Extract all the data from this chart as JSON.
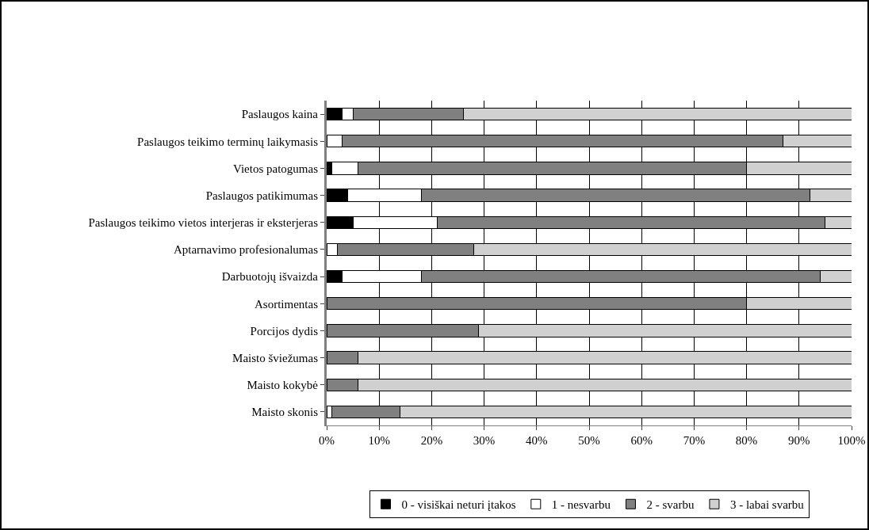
{
  "chart_data": {
    "type": "bar",
    "orientation": "horizontal",
    "stacked": true,
    "grid": "x",
    "legend": "bottom",
    "categories": [
      "Paslaugos kaina",
      "Paslaugos teikimo terminų laikymasis",
      "Vietos patogumas",
      "Paslaugos patikimumas",
      "Paslaugos teikimo vietos interjeras ir eksterjeras",
      "Aptarnavimo profesionalumas",
      "Darbuotojų išvaizda",
      "Asortimentas",
      "Porcijos dydis",
      "Maisto šviežumas",
      "Maisto kokybė",
      "Maisto skonis"
    ],
    "series": [
      {
        "name": "0 - visiškai neturi įtakos",
        "color": "#000000",
        "values": [
          3,
          0,
          1,
          4,
          5,
          0,
          3,
          0,
          0,
          0,
          0,
          0
        ]
      },
      {
        "name": "1 - nesvarbu",
        "color": "#ffffff",
        "values": [
          2,
          3,
          5,
          14,
          16,
          2,
          15,
          0,
          0,
          0,
          0,
          1
        ]
      },
      {
        "name": "2 - svarbu",
        "color": "#808080",
        "values": [
          21,
          84,
          74,
          74,
          74,
          26,
          76,
          80,
          29,
          6,
          6,
          13
        ]
      },
      {
        "name": "3 - labai svarbu",
        "color": "#d0d0d0",
        "values": [
          74,
          13,
          20,
          8,
          5,
          72,
          6,
          20,
          71,
          94,
          94,
          86
        ]
      }
    ],
    "xlim": [
      0,
      100
    ],
    "xticks": [
      {
        "value": 0,
        "label": "0%"
      },
      {
        "value": 10,
        "label": "10%"
      },
      {
        "value": 20,
        "label": "20%"
      },
      {
        "value": 30,
        "label": "30%"
      },
      {
        "value": 40,
        "label": "40%"
      },
      {
        "value": 50,
        "label": "50%"
      },
      {
        "value": 60,
        "label": "60%"
      },
      {
        "value": 70,
        "label": "70%"
      },
      {
        "value": 80,
        "label": "80%"
      },
      {
        "value": 90,
        "label": "90%"
      },
      {
        "value": 100,
        "label": "100%"
      }
    ]
  }
}
